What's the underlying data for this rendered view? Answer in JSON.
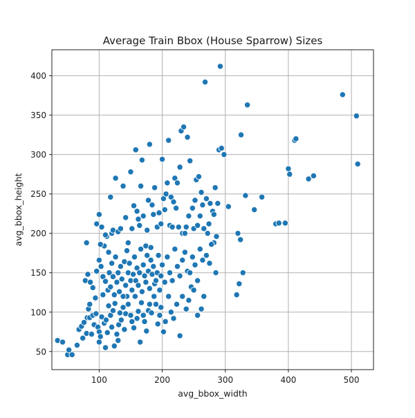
{
  "chart_data": {
    "type": "scatter",
    "title": "Average Train Bbox (House Sparrow) Sizes",
    "xlabel": "avg_bbox_width",
    "ylabel": "avg_bbox_height",
    "xlim": [
      25,
      535
    ],
    "ylim": [
      27,
      433
    ],
    "xticks": [
      100,
      200,
      300,
      400,
      500
    ],
    "yticks": [
      50,
      100,
      150,
      200,
      250,
      300,
      350,
      400
    ],
    "grid": true,
    "point_color": "#1f77b4",
    "points": [
      [
        34,
        64
      ],
      [
        42,
        62
      ],
      [
        50,
        46
      ],
      [
        52,
        52
      ],
      [
        57,
        46
      ],
      [
        65,
        58
      ],
      [
        68,
        78
      ],
      [
        72,
        82
      ],
      [
        74,
        67
      ],
      [
        76,
        87
      ],
      [
        80,
        73
      ],
      [
        81,
        93
      ],
      [
        83,
        104
      ],
      [
        85,
        93
      ],
      [
        85,
        110
      ],
      [
        88,
        72
      ],
      [
        90,
        96
      ],
      [
        92,
        84
      ],
      [
        95,
        98
      ],
      [
        98,
        81
      ],
      [
        100,
        62
      ],
      [
        100,
        75
      ],
      [
        102,
        69
      ],
      [
        104,
        94
      ],
      [
        106,
        122
      ],
      [
        108,
        86
      ],
      [
        110,
        55
      ],
      [
        111,
        90
      ],
      [
        113,
        74
      ],
      [
        115,
        108
      ],
      [
        118,
        96
      ],
      [
        120,
        81
      ],
      [
        122,
        102
      ],
      [
        124,
        57
      ],
      [
        125,
        111
      ],
      [
        128,
        72
      ],
      [
        130,
        64
      ],
      [
        131,
        84
      ],
      [
        133,
        99
      ],
      [
        135,
        90
      ],
      [
        138,
        106
      ],
      [
        140,
        78
      ],
      [
        142,
        98
      ],
      [
        144,
        120
      ],
      [
        146,
        110
      ],
      [
        150,
        96
      ],
      [
        152,
        88
      ],
      [
        155,
        80
      ],
      [
        157,
        120
      ],
      [
        160,
        92
      ],
      [
        162,
        101
      ],
      [
        165,
        62
      ],
      [
        167,
        112
      ],
      [
        170,
        96
      ],
      [
        172,
        88
      ],
      [
        175,
        76
      ],
      [
        178,
        102
      ],
      [
        180,
        110
      ],
      [
        183,
        99
      ],
      [
        187,
        120
      ],
      [
        190,
        110
      ],
      [
        193,
        85
      ],
      [
        196,
        96
      ],
      [
        198,
        106
      ],
      [
        202,
        75
      ],
      [
        205,
        88
      ],
      [
        210,
        120
      ],
      [
        214,
        100
      ],
      [
        218,
        92
      ],
      [
        223,
        110
      ],
      [
        228,
        70
      ],
      [
        232,
        120
      ],
      [
        238,
        104
      ],
      [
        242,
        115
      ],
      [
        246,
        132
      ],
      [
        250,
        128
      ],
      [
        256,
        96
      ],
      [
        262,
        104
      ],
      [
        266,
        120
      ],
      [
        78,
        140
      ],
      [
        82,
        148
      ],
      [
        86,
        138
      ],
      [
        90,
        131
      ],
      [
        94,
        118
      ],
      [
        96,
        152
      ],
      [
        100,
        166
      ],
      [
        103,
        158
      ],
      [
        106,
        145
      ],
      [
        108,
        184
      ],
      [
        110,
        139
      ],
      [
        112,
        196
      ],
      [
        114,
        128
      ],
      [
        116,
        150
      ],
      [
        118,
        132
      ],
      [
        120,
        162
      ],
      [
        122,
        145
      ],
      [
        124,
        122
      ],
      [
        126,
        170
      ],
      [
        128,
        138
      ],
      [
        130,
        150
      ],
      [
        132,
        126
      ],
      [
        134,
        158
      ],
      [
        136,
        142
      ],
      [
        138,
        120
      ],
      [
        140,
        164
      ],
      [
        142,
        134
      ],
      [
        144,
        178
      ],
      [
        146,
        150
      ],
      [
        148,
        162
      ],
      [
        150,
        140
      ],
      [
        152,
        128
      ],
      [
        154,
        148
      ],
      [
        156,
        170
      ],
      [
        158,
        140
      ],
      [
        160,
        156
      ],
      [
        162,
        134
      ],
      [
        164,
        150
      ],
      [
        166,
        180
      ],
      [
        168,
        126
      ],
      [
        170,
        160
      ],
      [
        172,
        146
      ],
      [
        174,
        138
      ],
      [
        176,
        172
      ],
      [
        178,
        152
      ],
      [
        180,
        130
      ],
      [
        182,
        166
      ],
      [
        184,
        148
      ],
      [
        186,
        158
      ],
      [
        188,
        136
      ],
      [
        190,
        140
      ],
      [
        192,
        150
      ],
      [
        194,
        172
      ],
      [
        196,
        128
      ],
      [
        198,
        146
      ],
      [
        200,
        160
      ],
      [
        204,
        138
      ],
      [
        208,
        170
      ],
      [
        212,
        150
      ],
      [
        216,
        140
      ],
      [
        220,
        180
      ],
      [
        224,
        158
      ],
      [
        228,
        146
      ],
      [
        232,
        166
      ],
      [
        236,
        176
      ],
      [
        240,
        152
      ],
      [
        244,
        150
      ],
      [
        248,
        170
      ],
      [
        252,
        160
      ],
      [
        256,
        140
      ],
      [
        260,
        180
      ],
      [
        264,
        166
      ],
      [
        270,
        172
      ],
      [
        275,
        162
      ],
      [
        282,
        188
      ],
      [
        285,
        150
      ],
      [
        80,
        188
      ],
      [
        96,
        212
      ],
      [
        100,
        224
      ],
      [
        102,
        186
      ],
      [
        104,
        208
      ],
      [
        110,
        198
      ],
      [
        115,
        176
      ],
      [
        118,
        246
      ],
      [
        120,
        200
      ],
      [
        122,
        204
      ],
      [
        126,
        270
      ],
      [
        130,
        202
      ],
      [
        134,
        206
      ],
      [
        138,
        260
      ],
      [
        142,
        220
      ],
      [
        146,
        188
      ],
      [
        150,
        278
      ],
      [
        152,
        206
      ],
      [
        155,
        235
      ],
      [
        158,
        306
      ],
      [
        160,
        228
      ],
      [
        162,
        218
      ],
      [
        164,
        210
      ],
      [
        166,
        260
      ],
      [
        168,
        293
      ],
      [
        170,
        222
      ],
      [
        174,
        184
      ],
      [
        176,
        204
      ],
      [
        178,
        242
      ],
      [
        180,
        313
      ],
      [
        182,
        182
      ],
      [
        184,
        236
      ],
      [
        186,
        224
      ],
      [
        188,
        258
      ],
      [
        192,
        208
      ],
      [
        195,
        226
      ],
      [
        198,
        212
      ],
      [
        200,
        294
      ],
      [
        202,
        244
      ],
      [
        204,
        230
      ],
      [
        206,
        250
      ],
      [
        208,
        264
      ],
      [
        210,
        318
      ],
      [
        212,
        210
      ],
      [
        214,
        246
      ],
      [
        216,
        208
      ],
      [
        218,
        240
      ],
      [
        220,
        270
      ],
      [
        222,
        232
      ],
      [
        224,
        264
      ],
      [
        226,
        208
      ],
      [
        228,
        284
      ],
      [
        230,
        330
      ],
      [
        232,
        200
      ],
      [
        234,
        335
      ],
      [
        236,
        200
      ],
      [
        238,
        208
      ],
      [
        240,
        322
      ],
      [
        242,
        222
      ],
      [
        244,
        292
      ],
      [
        248,
        232
      ],
      [
        250,
        206
      ],
      [
        252,
        242
      ],
      [
        254,
        268
      ],
      [
        256,
        210
      ],
      [
        258,
        272
      ],
      [
        260,
        222
      ],
      [
        262,
        252
      ],
      [
        264,
        236
      ],
      [
        266,
        206
      ],
      [
        268,
        392
      ],
      [
        270,
        244
      ],
      [
        272,
        200
      ],
      [
        274,
        212
      ],
      [
        276,
        238
      ],
      [
        278,
        186
      ],
      [
        280,
        228
      ],
      [
        282,
        224
      ],
      [
        284,
        258
      ],
      [
        286,
        196
      ],
      [
        288,
        238
      ],
      [
        290,
        306
      ],
      [
        292,
        412
      ],
      [
        294,
        308
      ],
      [
        298,
        300
      ],
      [
        305,
        234
      ],
      [
        318,
        122
      ],
      [
        320,
        200
      ],
      [
        322,
        136
      ],
      [
        324,
        192
      ],
      [
        325,
        325
      ],
      [
        328,
        150
      ],
      [
        332,
        248
      ],
      [
        335,
        363
      ],
      [
        346,
        230
      ],
      [
        358,
        246
      ],
      [
        380,
        212
      ],
      [
        385,
        213
      ],
      [
        395,
        213
      ],
      [
        400,
        282
      ],
      [
        402,
        275
      ],
      [
        410,
        318
      ],
      [
        412,
        320
      ],
      [
        432,
        269
      ],
      [
        440,
        273
      ],
      [
        486,
        376
      ],
      [
        508,
        349
      ],
      [
        510,
        288
      ]
    ]
  }
}
